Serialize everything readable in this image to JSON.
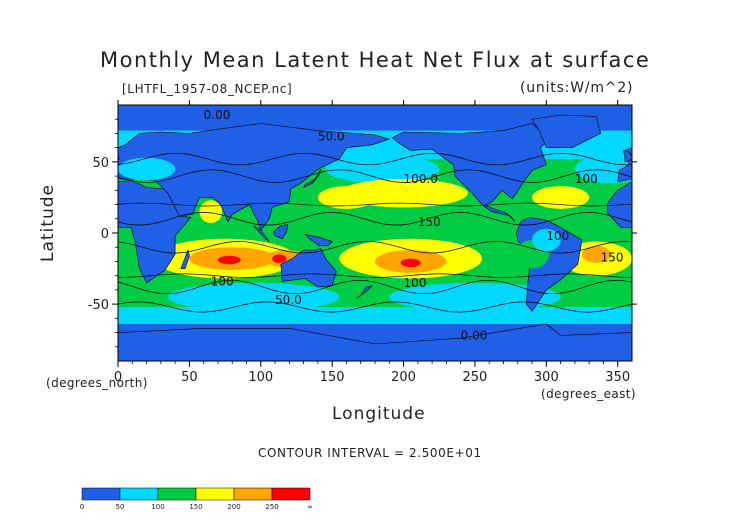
{
  "chart_data": {
    "type": "heatmap",
    "title": "Monthly Mean Latent Heat Net Flux at surface",
    "subtitle": "[LHTFL_1957-08_NCEP.nc]",
    "units": "(units:W/m^2)",
    "xlabel": "Longitude",
    "ylabel": "Latitude",
    "x_unit_label": "(degrees_east)",
    "y_unit_label": "(degrees_north)",
    "xlim": [
      0,
      360
    ],
    "ylim": [
      -90,
      90
    ],
    "x_ticks": [
      0,
      50,
      100,
      150,
      200,
      250,
      300,
      350
    ],
    "y_ticks": [
      -50,
      0,
      50
    ],
    "contour_interval_text": "CONTOUR INTERVAL = 2.500E+01",
    "contour_labels": [
      {
        "text": "0.00",
        "lon": 60,
        "lat": 80
      },
      {
        "text": "50.0",
        "lon": 140,
        "lat": 65
      },
      {
        "text": "100.0",
        "lon": 200,
        "lat": 35
      },
      {
        "text": "100",
        "lon": 320,
        "lat": 35
      },
      {
        "text": "150",
        "lon": 210,
        "lat": 5
      },
      {
        "text": "100",
        "lon": 300,
        "lat": -5
      },
      {
        "text": "150",
        "lon": 338,
        "lat": -20
      },
      {
        "text": "100",
        "lon": 65,
        "lat": -37
      },
      {
        "text": "50.0",
        "lon": 110,
        "lat": -50
      },
      {
        "text": "100",
        "lon": 200,
        "lat": -38
      },
      {
        "text": "0.00",
        "lon": 240,
        "lat": -75
      }
    ],
    "colorbar": {
      "levels": [
        "0",
        "50",
        "100",
        "150",
        "200",
        "250",
        "∞"
      ],
      "colors": [
        "#1e5fe6",
        "#00d8ff",
        "#00cc44",
        "#ffff00",
        "#ffa500",
        "#ff0000"
      ]
    },
    "colors": {
      "land": "#2060e6",
      "very_low": "#1e5fe6",
      "low": "#00d8ff",
      "mid": "#00cc44",
      "high": "#ffff00",
      "very_high": "#ffa500",
      "max": "#ff0000"
    }
  }
}
